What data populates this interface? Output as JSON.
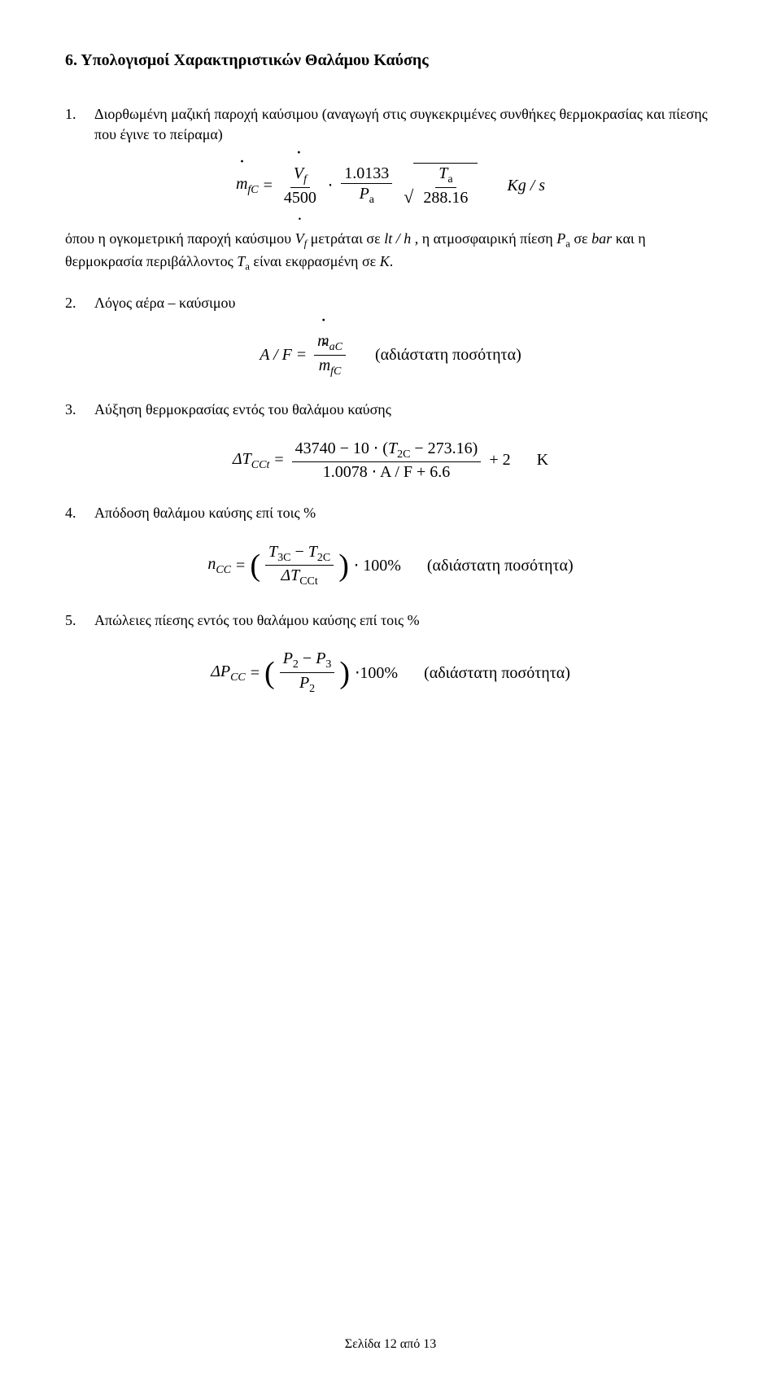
{
  "section": {
    "title": "6. Υπολογισμοί Χαρακτηριστικών Θαλάμου Καύσης"
  },
  "item1": {
    "num": "1.",
    "text": "Διορθωμένη μαζική παροχή καύσιμου (αναγωγή στις συγκεκριμένες συνθήκες θερμοκρασίας και πίεσης που έγινε το πείραμα)",
    "formula": {
      "lhs_var": "m",
      "lhs_sub": "fC",
      "eq": "=",
      "f1_num_var": "V",
      "f1_num_sub": "f",
      "f1_den": "4500",
      "dot": "⋅",
      "f2_num": "1.0133",
      "f2_den_var": "P",
      "f2_den_sub": "a",
      "sqrt_num_var": "T",
      "sqrt_num_sub": "a",
      "sqrt_den": "288.16",
      "unit": "Kg / s"
    },
    "after": {
      "pre": "όπου η ογκομετρική παροχή καύσιμου ",
      "v_var": "V",
      "v_sub": "f",
      "mid": " μετράται σε ",
      "unit1": "lt / h",
      "mid2": ", η ατμοσφαιρική πίεση ",
      "p_var": "P",
      "p_sub": "a",
      "mid3": " σε ",
      "bar": "bar",
      "mid4": " και η θερμοκρασία περιβάλλοντος ",
      "t_var": "T",
      "t_sub": "a",
      "mid5": " είναι εκφρασμένη σε ",
      "kelvin": "K",
      "mid6": "."
    }
  },
  "item2": {
    "num": "2.",
    "text": "Λόγος αέρα – καύσιμου",
    "formula": {
      "lhs": "A / F",
      "eq": "=",
      "num_var": "m",
      "num_sub": "aC",
      "den_var": "m",
      "den_sub": "fC",
      "annot": "(αδιάστατη ποσότητα)"
    }
  },
  "item3": {
    "num": "3.",
    "text": "Αύξηση θερμοκρασίας εντός του θαλάμου καύσης",
    "formula": {
      "lhs_var": "ΔT",
      "lhs_sub": "CCt",
      "eq": "=",
      "num_pre": "43740 − 10 ⋅ (",
      "num_var": "T",
      "num_var_sub": "2C",
      "num_post": " − 273.16)",
      "den": "1.0078 ⋅ A / F + 6.6",
      "tail": "+ 2",
      "unit": "K"
    }
  },
  "item4": {
    "num": "4.",
    "text": "Απόδοση θαλάμου καύσης επί τοις %",
    "formula": {
      "lhs_var": "n",
      "lhs_sub": "CC",
      "eq": "=",
      "num_t1": "T",
      "num_t1_sub": "3C",
      "num_minus": " − ",
      "num_t2": "T",
      "num_t2_sub": "2C",
      "den_var": "ΔT",
      "den_sub": "CCt",
      "tail": "⋅ 100%",
      "annot": "(αδιάστατη ποσότητα)"
    }
  },
  "item5": {
    "num": "5.",
    "text": "Απώλειες πίεσης εντός του θαλάμου καύσης επί τοις %",
    "formula": {
      "lhs_var": "ΔP",
      "lhs_sub": "CC",
      "eq": "=",
      "num_p1": "P",
      "num_p1_sub": "2",
      "num_minus": " − ",
      "num_p2": "P",
      "num_p2_sub": "3",
      "den_var": "P",
      "den_sub": "2",
      "tail": "⋅100%",
      "annot": "(αδιάστατη ποσότητα)"
    }
  },
  "footer": "Σελίδα 12 από 13"
}
